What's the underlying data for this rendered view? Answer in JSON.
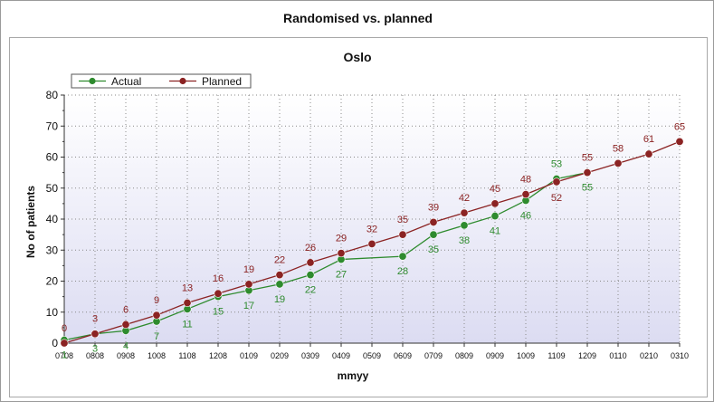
{
  "window": {
    "title": "Randomised vs. planned"
  },
  "chart_data": {
    "type": "line",
    "title": "Oslo",
    "xlabel": "mmyy",
    "ylabel": "No of patients",
    "ylim": [
      0,
      80
    ],
    "yticks": [
      0,
      10,
      20,
      30,
      40,
      50,
      60,
      70,
      80
    ],
    "categories": [
      "0708",
      "0808",
      "0908",
      "1008",
      "1108",
      "1208",
      "0109",
      "0209",
      "0309",
      "0409",
      "0509",
      "0609",
      "0709",
      "0809",
      "0909",
      "1009",
      "1109",
      "1209",
      "0110",
      "0210",
      "0310"
    ],
    "grid": true,
    "legend_position": "top-left",
    "series": [
      {
        "name": "Actual",
        "color": "#2e8b2e",
        "values": [
          1,
          3,
          4,
          7,
          11,
          15,
          17,
          19,
          22,
          27,
          null,
          28,
          35,
          38,
          41,
          46,
          53,
          55,
          null,
          null,
          null
        ]
      },
      {
        "name": "Planned",
        "color": "#8b2323",
        "values": [
          0,
          3,
          6,
          9,
          13,
          16,
          19,
          22,
          26,
          29,
          32,
          35,
          39,
          42,
          45,
          48,
          52,
          55,
          58,
          61,
          65
        ]
      }
    ]
  }
}
